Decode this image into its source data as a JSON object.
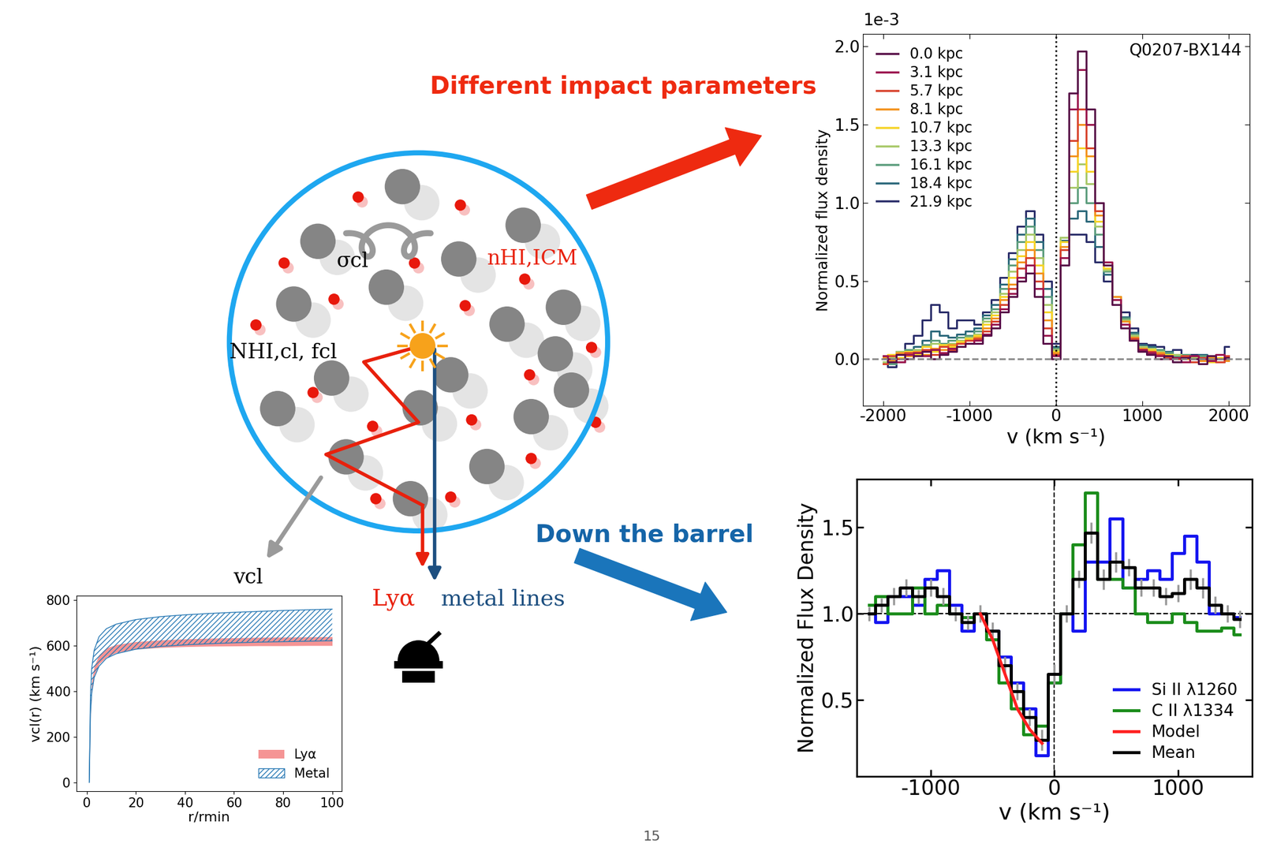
{
  "diagram": {
    "sigma_label": "σcl",
    "n_label": "nHI,ICM",
    "N_label": "NHI,cl, fcl",
    "v_label": "vcl",
    "lya_label": "Lyα",
    "metal_label": "metal lines",
    "arrow_top_label": "Different impact parameters",
    "arrow_bottom_label": "Down the barrel",
    "page_number": "15"
  },
  "chart_data": [
    {
      "type": "step",
      "title": "Q0207-BX144",
      "xlabel": "v (km s⁻¹)",
      "ylabel": "Normalized flux density",
      "y_multiplier": "1e-3",
      "x": [
        -2000,
        -1900,
        -1800,
        -1700,
        -1600,
        -1500,
        -1400,
        -1300,
        -1200,
        -1100,
        -1000,
        -900,
        -800,
        -700,
        -600,
        -500,
        -400,
        -300,
        -200,
        -100,
        0,
        100,
        200,
        300,
        400,
        500,
        600,
        700,
        800,
        900,
        1000,
        1100,
        1200,
        1300,
        1400,
        1500,
        1600,
        1700,
        1800,
        1900,
        2000
      ],
      "xlim": [
        -2230,
        2240
      ],
      "xticks": [
        -2000,
        -1000,
        0,
        1000,
        2000
      ],
      "ylim": [
        -0.3,
        2.08
      ],
      "yticks": [
        0.0,
        0.5,
        1.0,
        1.5,
        2.0
      ],
      "legend": "upper left",
      "reference_lines": {
        "x": 0,
        "y": 0
      },
      "series": [
        {
          "name": "0.0 kpc",
          "color": "#5a0f4a",
          "values": [
            0.0,
            -0.02,
            0.03,
            0.0,
            0.02,
            0.05,
            0.0,
            0.03,
            0.05,
            0.08,
            0.1,
            0.1,
            0.15,
            0.2,
            0.3,
            0.4,
            0.5,
            0.55,
            0.4,
            0.1,
            0.0,
            0.6,
            1.7,
            1.97,
            1.6,
            1.0,
            0.6,
            0.35,
            0.2,
            0.12,
            0.05,
            0.03,
            0.0,
            0.02,
            -0.02,
            0.01,
            0.0,
            -0.03,
            0.02,
            0.0,
            0.01
          ]
        },
        {
          "name": "3.1 kpc",
          "color": "#9c1750",
          "values": [
            0.02,
            0.0,
            -0.02,
            0.03,
            0.04,
            0.02,
            0.06,
            0.04,
            0.07,
            0.08,
            0.1,
            0.12,
            0.16,
            0.22,
            0.32,
            0.42,
            0.52,
            0.6,
            0.45,
            0.15,
            0.02,
            0.65,
            1.6,
            1.85,
            1.5,
            1.0,
            0.62,
            0.38,
            0.22,
            0.12,
            0.06,
            0.04,
            0.02,
            0.0,
            0.01,
            -0.02,
            0.02,
            0.0,
            -0.01,
            0.03,
            0.0
          ]
        },
        {
          "name": "5.7 kpc",
          "color": "#d8452f",
          "values": [
            -0.03,
            0.02,
            0.0,
            0.04,
            0.02,
            0.06,
            0.03,
            0.08,
            0.06,
            0.1,
            0.12,
            0.13,
            0.18,
            0.24,
            0.35,
            0.45,
            0.58,
            0.65,
            0.5,
            0.2,
            0.03,
            0.7,
            1.4,
            1.6,
            1.35,
            0.95,
            0.6,
            0.38,
            0.22,
            0.13,
            0.06,
            0.05,
            0.03,
            0.01,
            0.0,
            0.02,
            -0.02,
            0.01,
            0.0,
            -0.02,
            0.02
          ]
        },
        {
          "name": "8.1 kpc",
          "color": "#f39420",
          "values": [
            0.01,
            -0.01,
            0.04,
            0.02,
            0.05,
            0.03,
            0.07,
            0.06,
            0.09,
            0.1,
            0.12,
            0.14,
            0.2,
            0.26,
            0.38,
            0.48,
            0.62,
            0.7,
            0.55,
            0.25,
            0.04,
            0.72,
            1.3,
            1.5,
            1.3,
            0.92,
            0.6,
            0.4,
            0.24,
            0.14,
            0.07,
            0.05,
            0.04,
            0.02,
            0.01,
            0.0,
            0.02,
            -0.01,
            0.01,
            0.0,
            -0.01
          ]
        },
        {
          "name": "10.7 kpc",
          "color": "#f6d42a",
          "values": [
            0.0,
            0.03,
            0.01,
            0.05,
            0.03,
            0.08,
            0.05,
            0.09,
            0.08,
            0.11,
            0.13,
            0.15,
            0.22,
            0.28,
            0.4,
            0.52,
            0.66,
            0.75,
            0.6,
            0.3,
            0.05,
            0.75,
            1.2,
            1.35,
            1.2,
            0.88,
            0.58,
            0.4,
            0.24,
            0.14,
            0.07,
            0.06,
            0.04,
            0.03,
            0.0,
            0.02,
            0.0,
            0.01,
            -0.02,
            0.01,
            0.0
          ]
        },
        {
          "name": "13.3 kpc",
          "color": "#a9c96b",
          "values": [
            -0.02,
            0.01,
            0.05,
            0.02,
            0.06,
            0.05,
            0.1,
            0.08,
            0.1,
            0.12,
            0.14,
            0.16,
            0.24,
            0.3,
            0.42,
            0.56,
            0.7,
            0.8,
            0.65,
            0.35,
            0.06,
            0.78,
            1.1,
            1.25,
            1.12,
            0.85,
            0.57,
            0.4,
            0.25,
            0.15,
            0.08,
            0.07,
            0.05,
            0.02,
            0.03,
            0.0,
            0.01,
            -0.01,
            0.02,
            0.0,
            0.02
          ]
        },
        {
          "name": "16.1 kpc",
          "color": "#5e9e7e",
          "values": [
            0.02,
            -0.03,
            0.03,
            0.06,
            0.04,
            0.09,
            0.12,
            0.1,
            0.12,
            0.14,
            0.15,
            0.18,
            0.26,
            0.32,
            0.45,
            0.6,
            0.75,
            0.85,
            0.7,
            0.4,
            0.07,
            0.78,
            1.0,
            1.1,
            1.0,
            0.8,
            0.56,
            0.4,
            0.26,
            0.16,
            0.08,
            0.07,
            0.06,
            0.04,
            0.02,
            0.03,
            0.0,
            0.02,
            0.0,
            -0.02,
            0.01
          ]
        },
        {
          "name": "18.4 kpc",
          "color": "#2e6a7c",
          "values": [
            0.0,
            0.02,
            -0.02,
            0.05,
            0.08,
            0.12,
            0.18,
            0.15,
            0.14,
            0.16,
            0.18,
            0.2,
            0.28,
            0.35,
            0.48,
            0.64,
            0.8,
            0.9,
            0.75,
            0.45,
            0.08,
            0.76,
            0.9,
            0.95,
            0.88,
            0.72,
            0.54,
            0.4,
            0.27,
            0.17,
            0.09,
            0.08,
            0.06,
            0.05,
            0.03,
            0.02,
            0.01,
            0.03,
            -0.01,
            0.0,
            0.02
          ]
        },
        {
          "name": "21.9 kpc",
          "color": "#2c2f6b",
          "values": [
            0.0,
            -0.05,
            0.05,
            0.1,
            0.15,
            0.25,
            0.35,
            0.3,
            0.2,
            0.25,
            0.25,
            0.22,
            0.3,
            0.38,
            0.52,
            0.68,
            0.85,
            0.95,
            0.8,
            0.5,
            0.1,
            0.7,
            0.8,
            0.8,
            0.75,
            0.62,
            0.5,
            0.4,
            0.3,
            0.2,
            0.1,
            0.09,
            0.08,
            0.05,
            0.06,
            0.02,
            0.03,
            0.0,
            0.02,
            -0.02,
            0.08
          ]
        }
      ]
    },
    {
      "type": "step",
      "xlabel": "v (km s⁻¹)",
      "ylabel": "Normalized Flux Density",
      "x": [
        -1500,
        -1400,
        -1300,
        -1200,
        -1100,
        -1000,
        -900,
        -800,
        -700,
        -600,
        -500,
        -400,
        -300,
        -200,
        -100,
        0,
        100,
        200,
        300,
        400,
        500,
        600,
        700,
        800,
        900,
        1000,
        1100,
        1200,
        1300,
        1400,
        1500
      ],
      "xlim": [
        -1600,
        1600
      ],
      "xticks": [
        -1000,
        0,
        1000
      ],
      "ylim": [
        0.06,
        1.78
      ],
      "yticks": [
        0.5,
        1.0,
        1.5
      ],
      "legend": "lower right",
      "reference_lines": {
        "x": 0,
        "y": 1.0
      },
      "series": [
        {
          "name": "Si II λ1260",
          "color": "#1414f0",
          "values": [
            1.0,
            0.95,
            1.1,
            1.1,
            1.05,
            1.2,
            1.25,
            1.05,
            0.9,
            1.0,
            0.9,
            0.75,
            0.6,
            0.45,
            0.18,
            0.6,
            1.0,
            0.9,
            1.3,
            1.3,
            1.55,
            1.15,
            1.2,
            1.25,
            1.2,
            1.35,
            1.45,
            1.3,
            1.0,
            1.0,
            0.98
          ]
        },
        {
          "name": "C II λ1334",
          "color": "#1a8c1a",
          "values": [
            1.05,
            1.1,
            1.0,
            1.0,
            1.15,
            1.0,
            1.05,
            1.0,
            0.98,
            1.0,
            0.85,
            0.6,
            0.45,
            0.3,
            0.35,
            0.6,
            1.0,
            1.4,
            1.7,
            1.2,
            1.2,
            1.15,
            1.0,
            0.95,
            0.95,
            1.0,
            0.95,
            0.9,
            0.9,
            0.92,
            0.88
          ]
        },
        {
          "name": "Model",
          "color": "#ff2020",
          "type": "line",
          "x": [
            -600,
            -500,
            -400,
            -300,
            -200,
            -100
          ],
          "values": [
            1.0,
            0.85,
            0.65,
            0.45,
            0.33,
            0.25
          ]
        },
        {
          "name": "Mean",
          "color": "#000000",
          "values": [
            1.0,
            1.05,
            1.1,
            1.15,
            1.1,
            1.15,
            1.1,
            1.0,
            0.95,
            1.0,
            0.9,
            0.7,
            0.55,
            0.4,
            0.27,
            0.65,
            1.0,
            1.2,
            1.47,
            1.2,
            1.3,
            1.27,
            1.15,
            1.15,
            1.1,
            1.12,
            1.2,
            1.15,
            1.05,
            1.0,
            0.97
          ],
          "errors": [
            0.04,
            0.04,
            0.05,
            0.05,
            0.04,
            0.05,
            0.05,
            0.04,
            0.04,
            0.05,
            0.05,
            0.05,
            0.05,
            0.05,
            0.06,
            0.06,
            0.05,
            0.05,
            0.06,
            0.06,
            0.06,
            0.05,
            0.05,
            0.05,
            0.05,
            0.05,
            0.06,
            0.06,
            0.05,
            0.05,
            0.05
          ]
        }
      ]
    },
    {
      "type": "area",
      "xlabel": "r/rmin",
      "ylabel": "vcl(r) (km s⁻¹)",
      "x": [
        1,
        1.5,
        2,
        3,
        5,
        8,
        12,
        20,
        30,
        40,
        50,
        60,
        70,
        80,
        90,
        100
      ],
      "xlim": [
        -4.2,
        103.8
      ],
      "xticks": [
        0,
        20,
        40,
        60,
        80,
        100
      ],
      "ylim": [
        -40,
        820
      ],
      "yticks": [
        0,
        200,
        400,
        600,
        800
      ],
      "legend": "lower right",
      "series": [
        {
          "name": "Lyα",
          "color": "#f48282",
          "lower": [
            0,
            300,
            400,
            470,
            520,
            550,
            570,
            585,
            592,
            596,
            598,
            599,
            600,
            600,
            601,
            601
          ],
          "upper": [
            0,
            330,
            440,
            510,
            560,
            590,
            605,
            618,
            625,
            630,
            633,
            635,
            637,
            638,
            639,
            640
          ]
        },
        {
          "name": "Metal",
          "color": "#2a7ab5",
          "lower": [
            0,
            300,
            390,
            460,
            510,
            545,
            565,
            585,
            597,
            604,
            609,
            613,
            616,
            618,
            620,
            622
          ],
          "upper": [
            0,
            380,
            500,
            580,
            640,
            675,
            695,
            715,
            728,
            736,
            742,
            747,
            751,
            755,
            758,
            761
          ]
        }
      ]
    }
  ]
}
